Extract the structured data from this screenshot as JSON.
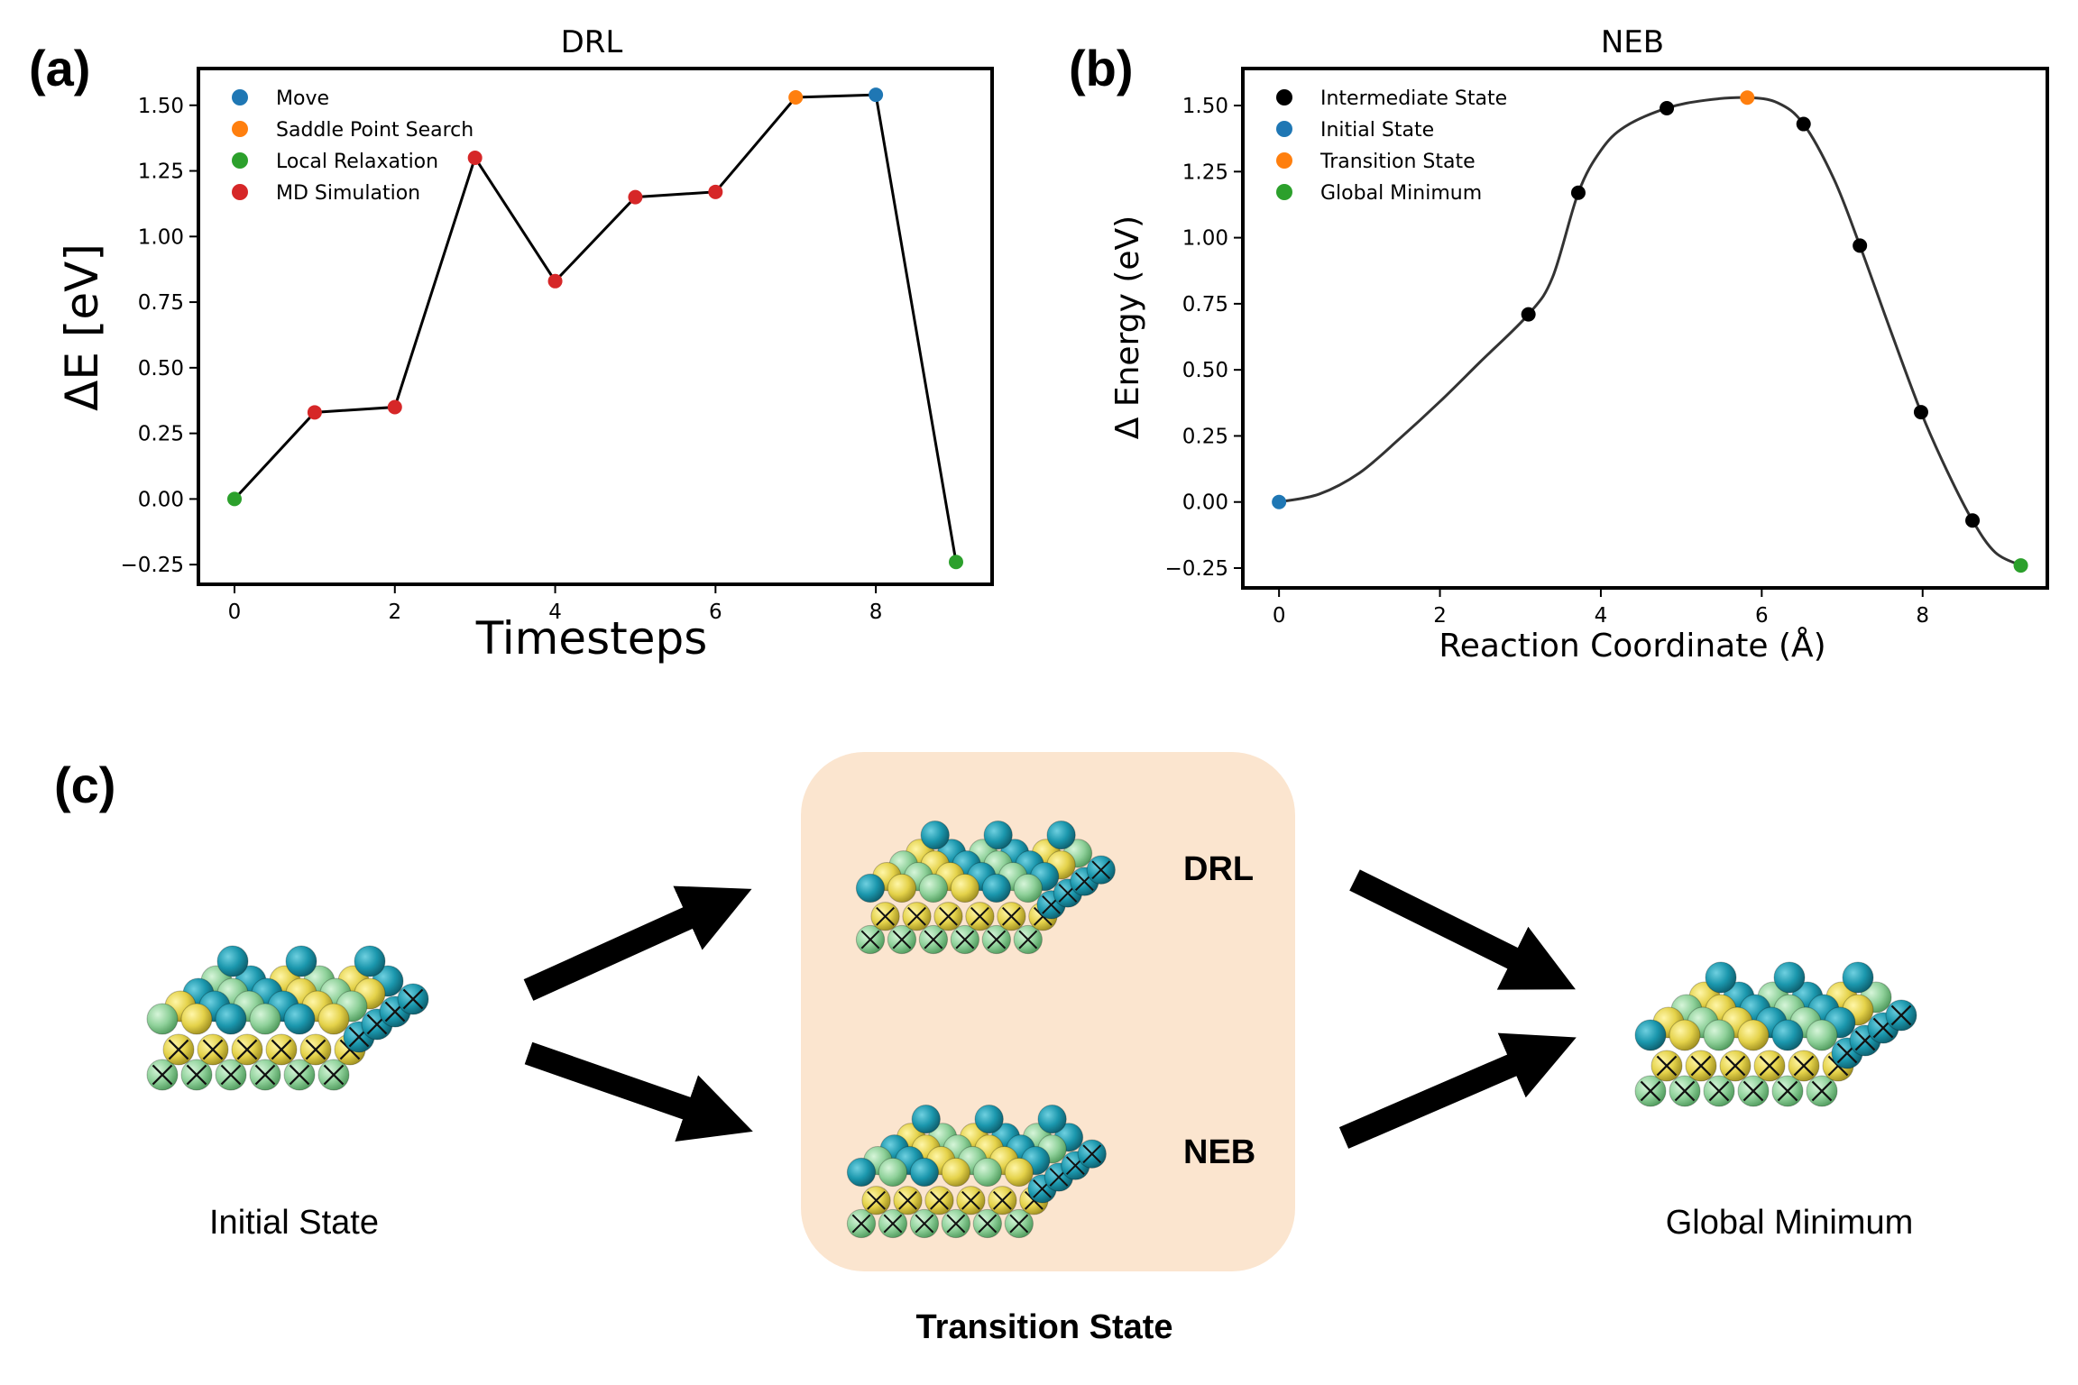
{
  "panel_labels": {
    "a": "(a)",
    "b": "(b)",
    "c": "(c)"
  },
  "chart_data": [
    {
      "id": "a",
      "type": "line",
      "title": "DRL",
      "xlabel": "Timesteps",
      "ylabel": "ΔE [eV]",
      "xlim": [
        -0.45,
        9.45
      ],
      "ylim": [
        -0.325,
        1.64
      ],
      "xticks": [
        0,
        2,
        4,
        6,
        8
      ],
      "yticks": [
        -0.25,
        0.0,
        0.25,
        0.5,
        0.75,
        1.0,
        1.25,
        1.5
      ],
      "ytick_labels": [
        "−0.25",
        "0.00",
        "0.25",
        "0.50",
        "0.75",
        "1.00",
        "1.25",
        "1.50"
      ],
      "xtick_labels": [
        "0",
        "2",
        "4",
        "6",
        "8"
      ],
      "grid": false,
      "legend_position": "top-left",
      "line_color": "#000000",
      "legend": [
        {
          "label": "Move",
          "color": "#1f77b4"
        },
        {
          "label": "Saddle Point Search",
          "color": "#ff7f0e"
        },
        {
          "label": "Local Relaxation",
          "color": "#2ca02c"
        },
        {
          "label": "MD Simulation",
          "color": "#d62728"
        }
      ],
      "points": [
        {
          "x": 0,
          "y": 0.0,
          "color": "#2ca02c"
        },
        {
          "x": 1,
          "y": 0.33,
          "color": "#d62728"
        },
        {
          "x": 2,
          "y": 0.35,
          "color": "#d62728"
        },
        {
          "x": 3,
          "y": 1.3,
          "color": "#d62728"
        },
        {
          "x": 4,
          "y": 0.83,
          "color": "#d62728"
        },
        {
          "x": 5,
          "y": 1.15,
          "color": "#d62728"
        },
        {
          "x": 6,
          "y": 1.17,
          "color": "#d62728"
        },
        {
          "x": 7,
          "y": 1.53,
          "color": "#ff7f0e"
        },
        {
          "x": 8,
          "y": 1.54,
          "color": "#1f77b4"
        },
        {
          "x": 9,
          "y": -0.24,
          "color": "#2ca02c"
        }
      ]
    },
    {
      "id": "b",
      "type": "line",
      "title": "NEB",
      "xlabel": "Reaction Coordinate (Å)",
      "ylabel": "Δ Energy (eV)",
      "xlim": [
        -0.45,
        9.55
      ],
      "ylim": [
        -0.325,
        1.64
      ],
      "xticks": [
        0,
        2,
        4,
        6,
        8
      ],
      "yticks": [
        -0.25,
        0.0,
        0.25,
        0.5,
        0.75,
        1.0,
        1.25,
        1.5
      ],
      "ytick_labels": [
        "−0.25",
        "0.00",
        "0.25",
        "0.50",
        "0.75",
        "1.00",
        "1.25",
        "1.50"
      ],
      "xtick_labels": [
        "0",
        "2",
        "4",
        "6",
        "8"
      ],
      "grid": false,
      "legend_position": "top-left",
      "line_color": "#333333",
      "legend": [
        {
          "label": "Intermediate State",
          "color": "#000000"
        },
        {
          "label": "Initial State",
          "color": "#1f77b4"
        },
        {
          "label": "Transition State",
          "color": "#ff7f0e"
        },
        {
          "label": "Global Minimum",
          "color": "#2ca02c"
        }
      ],
      "curve": [
        [
          0.0,
          0.0
        ],
        [
          0.5,
          0.03
        ],
        [
          1.0,
          0.11
        ],
        [
          1.5,
          0.24
        ],
        [
          2.0,
          0.38
        ],
        [
          2.5,
          0.53
        ],
        [
          3.1,
          0.71
        ],
        [
          3.4,
          0.85
        ],
        [
          3.72,
          1.17
        ],
        [
          4.0,
          1.33
        ],
        [
          4.3,
          1.42
        ],
        [
          4.82,
          1.49
        ],
        [
          5.3,
          1.52
        ],
        [
          5.82,
          1.53
        ],
        [
          6.2,
          1.51
        ],
        [
          6.52,
          1.43
        ],
        [
          6.9,
          1.22
        ],
        [
          7.22,
          0.97
        ],
        [
          7.6,
          0.65
        ],
        [
          7.98,
          0.34
        ],
        [
          8.3,
          0.12
        ],
        [
          8.62,
          -0.07
        ],
        [
          8.9,
          -0.19
        ],
        [
          9.22,
          -0.24
        ]
      ],
      "points": [
        {
          "x": 0.0,
          "y": 0.0,
          "color": "#1f77b4"
        },
        {
          "x": 3.1,
          "y": 0.71,
          "color": "#000000"
        },
        {
          "x": 3.72,
          "y": 1.17,
          "color": "#000000"
        },
        {
          "x": 4.82,
          "y": 1.49,
          "color": "#000000"
        },
        {
          "x": 5.82,
          "y": 1.53,
          "color": "#ff7f0e"
        },
        {
          "x": 6.52,
          "y": 1.43,
          "color": "#000000"
        },
        {
          "x": 7.22,
          "y": 0.97,
          "color": "#000000"
        },
        {
          "x": 7.98,
          "y": 0.34,
          "color": "#000000"
        },
        {
          "x": 8.62,
          "y": -0.07,
          "color": "#000000"
        },
        {
          "x": 9.22,
          "y": -0.24,
          "color": "#2ca02c"
        }
      ]
    }
  ],
  "panel_c": {
    "initial_state": "Initial State",
    "global_minimum": "Global Minimum",
    "transition_state": "Transition State",
    "drl_label": "DRL",
    "neb_label": "NEB",
    "box_color": "#fbe5cf",
    "atom_colors": {
      "teal": "#1d8fa3",
      "yellow": "#e3d24f",
      "green": "#8fd19a"
    }
  }
}
